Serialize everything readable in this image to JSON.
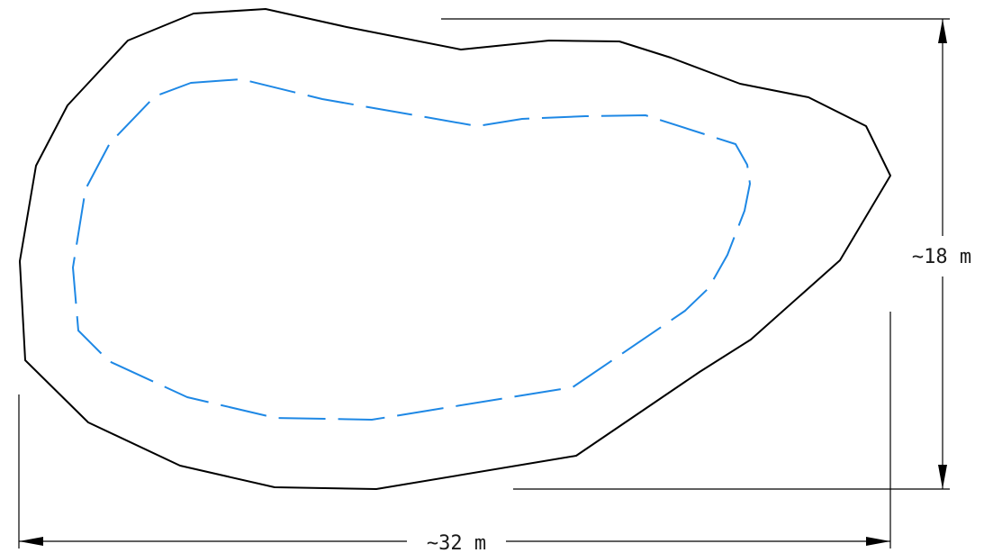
{
  "drawing": {
    "outer_boundary": {
      "color": "#000000",
      "style": "solid"
    },
    "inner_boundary": {
      "color": "#1e88e5",
      "style": "dashed"
    },
    "width_dimension": {
      "label": "~32 m"
    },
    "height_dimension": {
      "label": "~18 m"
    },
    "dimension_color": "#000000"
  }
}
